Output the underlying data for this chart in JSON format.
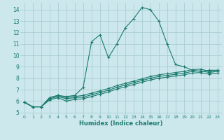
{
  "xlabel": "Humidex (Indice chaleur)",
  "bg_color": "#cce8ec",
  "grid_color": "#aacdd4",
  "line_color": "#1a7a6e",
  "xlim": [
    -0.5,
    23.5
  ],
  "ylim": [
    4.8,
    14.6
  ],
  "xticks": [
    0,
    1,
    2,
    3,
    4,
    5,
    6,
    7,
    8,
    9,
    10,
    11,
    12,
    13,
    14,
    15,
    16,
    17,
    18,
    19,
    20,
    21,
    22,
    23
  ],
  "yticks": [
    5,
    6,
    7,
    8,
    9,
    10,
    11,
    12,
    13,
    14
  ],
  "main_x": [
    0,
    1,
    2,
    3,
    4,
    5,
    6,
    7,
    8,
    9,
    10,
    11,
    12,
    13,
    14,
    15,
    16,
    17,
    18,
    19,
    20,
    21,
    22,
    23
  ],
  "main_y": [
    5.9,
    5.5,
    5.5,
    6.3,
    6.5,
    6.4,
    6.5,
    7.2,
    11.2,
    11.8,
    9.8,
    11.0,
    12.4,
    13.2,
    14.2,
    14.0,
    13.0,
    11.0,
    9.2,
    9.0,
    8.7,
    8.6,
    8.7,
    8.7
  ],
  "l1_x": [
    0,
    1,
    2,
    3,
    4,
    5,
    6,
    7,
    8,
    9,
    10,
    11,
    12,
    13,
    14,
    15,
    16,
    17,
    18,
    19,
    20,
    21,
    22,
    23
  ],
  "l1_y": [
    5.9,
    5.5,
    5.5,
    6.3,
    6.5,
    6.3,
    6.4,
    6.5,
    6.7,
    6.9,
    7.1,
    7.35,
    7.55,
    7.75,
    7.95,
    8.15,
    8.3,
    8.4,
    8.5,
    8.6,
    8.75,
    8.8,
    8.6,
    8.7
  ],
  "l2_x": [
    0,
    1,
    2,
    3,
    4,
    5,
    6,
    7,
    8,
    9,
    10,
    11,
    12,
    13,
    14,
    15,
    16,
    17,
    18,
    19,
    20,
    21,
    22,
    23
  ],
  "l2_y": [
    5.9,
    5.5,
    5.5,
    6.2,
    6.4,
    6.2,
    6.3,
    6.35,
    6.55,
    6.75,
    6.95,
    7.2,
    7.4,
    7.6,
    7.8,
    8.0,
    8.15,
    8.25,
    8.35,
    8.45,
    8.6,
    8.65,
    8.5,
    8.6
  ],
  "l3_x": [
    0,
    1,
    2,
    3,
    4,
    5,
    6,
    7,
    8,
    9,
    10,
    11,
    12,
    13,
    14,
    15,
    16,
    17,
    18,
    19,
    20,
    21,
    22,
    23
  ],
  "l3_y": [
    5.9,
    5.5,
    5.5,
    6.1,
    6.3,
    6.0,
    6.15,
    6.2,
    6.4,
    6.6,
    6.8,
    7.05,
    7.25,
    7.45,
    7.65,
    7.85,
    8.0,
    8.1,
    8.2,
    8.3,
    8.45,
    8.5,
    8.35,
    8.45
  ]
}
